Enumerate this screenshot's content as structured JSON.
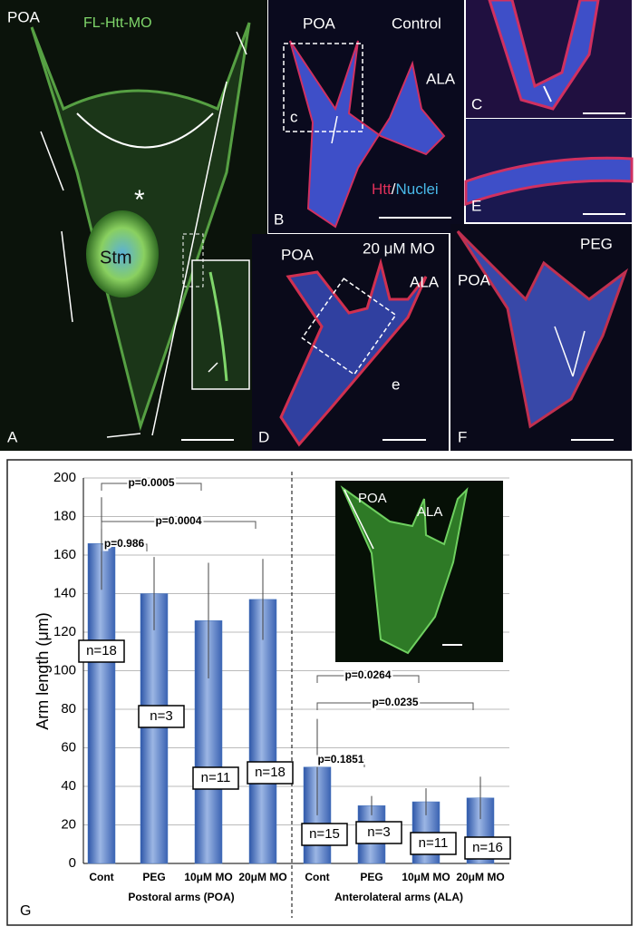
{
  "panels": [
    {
      "label": "A",
      "texts": [
        "POA",
        "FL-Htt-MO",
        "*",
        "Stm"
      ]
    },
    {
      "label": "B",
      "texts": [
        "POA",
        "Control",
        "ALA",
        "c",
        "Htt",
        "/",
        "Nuclei"
      ]
    },
    {
      "label": "C",
      "texts": []
    },
    {
      "label": "E",
      "texts": []
    },
    {
      "label": "D",
      "texts": [
        "POA",
        "20 μM MO",
        "ALA",
        "e"
      ]
    },
    {
      "label": "F",
      "texts": [
        "PEG",
        "POA"
      ]
    }
  ],
  "chart_data": {
    "type": "bar",
    "panel_label": "G",
    "ylabel": "Arm length (μm)",
    "categories": [
      "Cont",
      "PEG",
      "10μM MO",
      "20μM MO",
      "Cont",
      "PEG",
      "10μM MO",
      "20μM MO"
    ],
    "groups": [
      "Postoral arms (POA)",
      "Anterolateral arms (ALA)"
    ],
    "values": [
      166,
      140,
      126,
      137,
      50,
      30,
      32,
      34
    ],
    "errors": [
      24,
      19,
      30,
      21,
      25,
      5,
      7,
      11
    ],
    "n_labels": [
      "n=18",
      "n=3",
      "n=11",
      "n=18",
      "n=15",
      "n=3",
      "n=11",
      "n=16"
    ],
    "p_values": [
      "p=0.0005",
      "p=0.0004",
      "p=0.986",
      "p=0.0264",
      "p=0.0235",
      "p=0.1851"
    ],
    "inset_labels": [
      "POA",
      "ALA"
    ],
    "color": "#4a78c0",
    "ylim": [
      0,
      200
    ],
    "yticks": [
      0,
      20,
      40,
      60,
      80,
      100,
      120,
      140,
      160,
      180,
      200
    ],
    "grid": true
  }
}
